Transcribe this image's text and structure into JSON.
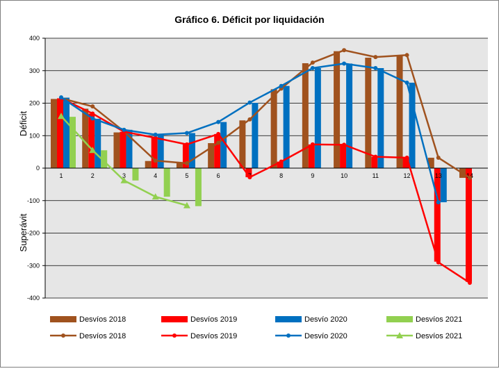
{
  "chart_data": {
    "type": "bar",
    "title": "Gráfico 6. Déficit por liquidación",
    "ylabel_top": "Déficit",
    "ylabel_bottom": "Superávit",
    "categories": [
      "1",
      "2",
      "3",
      "4",
      "5",
      "6",
      "7",
      "8",
      "9",
      "10",
      "11",
      "12",
      "13",
      "14"
    ],
    "ylim": [
      -400,
      400
    ],
    "yticks": [
      400,
      300,
      200,
      100,
      0,
      -100,
      -200,
      -300,
      -400
    ],
    "grid": true,
    "legend_position": "bottom",
    "bar_series": [
      {
        "name": "Desvíos 2018",
        "color": "#A0521E",
        "values": [
          213,
          183,
          110,
          22,
          18,
          77,
          147,
          243,
          323,
          360,
          340,
          347,
          32,
          -30
        ]
      },
      {
        "name": "Desvíos 2019",
        "color": "#FF0000",
        "values": [
          215,
          168,
          112,
          93,
          73,
          105,
          -28,
          20,
          73,
          72,
          35,
          32,
          -288,
          -350
        ]
      },
      {
        "name": "Desvío 2020",
        "color": "#0070C0",
        "values": [
          217,
          152,
          118,
          103,
          108,
          142,
          201,
          253,
          308,
          322,
          308,
          263,
          -105,
          null
        ]
      },
      {
        "name": "Desvíos 2021",
        "color": "#92D050",
        "values": [
          158,
          55,
          -38,
          -88,
          -117,
          null,
          null,
          null,
          null,
          null,
          null,
          null,
          null,
          null
        ]
      }
    ],
    "line_series": [
      {
        "name": "Desvíos 2018",
        "color": "#A0521E",
        "marker": "circle",
        "values": [
          215,
          190,
          113,
          23,
          15,
          78,
          150,
          245,
          325,
          363,
          342,
          348,
          32,
          -30
        ]
      },
      {
        "name": "Desvíos 2019",
        "color": "#FF0000",
        "marker": "circle",
        "values": [
          215,
          168,
          112,
          93,
          73,
          105,
          -28,
          20,
          73,
          72,
          35,
          32,
          -290,
          -353
        ]
      },
      {
        "name": "Desvío 2020",
        "color": "#0070C0",
        "marker": "circle",
        "values": [
          218,
          153,
          118,
          103,
          108,
          142,
          202,
          253,
          308,
          322,
          308,
          263,
          -105,
          null
        ]
      },
      {
        "name": "Desvíos 2021",
        "color": "#92D050",
        "marker": "triangle",
        "values": [
          160,
          55,
          -38,
          -88,
          -115,
          null,
          null,
          null,
          null,
          null,
          null,
          null,
          null,
          null
        ]
      }
    ]
  }
}
